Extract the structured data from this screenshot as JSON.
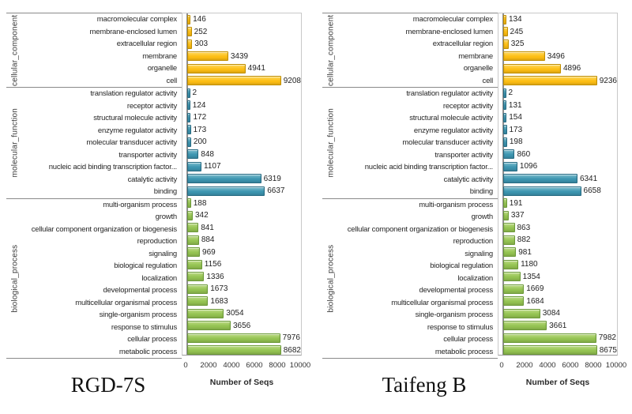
{
  "figure": {
    "axis_ticks": [
      "0",
      "2000",
      "4000",
      "6000",
      "8000",
      "10000"
    ],
    "xlabel": "Number of Seqs",
    "group_colors": {
      "cellular_component": {
        "fill": "#FDBE14",
        "fill_light": "#FFD95E",
        "stroke": "#C08E00"
      },
      "molecular_function": {
        "fill": "#3D95B0",
        "fill_light": "#7BBDCE",
        "stroke": "#276B83"
      },
      "biological_process": {
        "fill": "#94C352",
        "fill_light": "#BCDC85",
        "stroke": "#6C9A39"
      }
    }
  },
  "chart_data": [
    {
      "type": "bar",
      "orientation": "horizontal",
      "title": "RGD-7S",
      "xlabel": "Number of Seqs",
      "xlim": [
        0,
        10000
      ],
      "x_ticks": [
        0,
        2000,
        4000,
        6000,
        8000,
        10000
      ],
      "grid": false,
      "legend": "none",
      "groups": [
        {
          "name": "cellular_component",
          "categories": [
            "macromolecular complex",
            "membrane-enclosed lumen",
            "extracellular region",
            "membrane",
            "organelle",
            "cell"
          ],
          "values": [
            146,
            252,
            303,
            3439,
            4941,
            9208
          ]
        },
        {
          "name": "molecular_function",
          "categories": [
            "translation regulator activity",
            "receptor activity",
            "structural molecule activity",
            "enzyme regulator activity",
            "molecular transducer activity",
            "transporter activity",
            "nucleic acid binding transcription factor...",
            "catalytic activity",
            "binding"
          ],
          "values": [
            2,
            124,
            172,
            173,
            200,
            848,
            1107,
            6319,
            6637
          ]
        },
        {
          "name": "biological_process",
          "categories": [
            "multi-organism process",
            "growth",
            "cellular component organization or biogenesis",
            "reproduction",
            "signaling",
            "biological regulation",
            "localization",
            "developmental process",
            "multicellular organismal process",
            "single-organism process",
            "response to stimulus",
            "cellular process",
            "metabolic process"
          ],
          "values": [
            188,
            342,
            841,
            884,
            969,
            1156,
            1336,
            1673,
            1683,
            3054,
            3656,
            7976,
            8682
          ]
        }
      ]
    },
    {
      "type": "bar",
      "orientation": "horizontal",
      "title": "Taifeng B",
      "xlabel": "Number of Seqs",
      "xlim": [
        0,
        10000
      ],
      "x_ticks": [
        0,
        2000,
        4000,
        6000,
        8000,
        10000
      ],
      "grid": false,
      "legend": "none",
      "groups": [
        {
          "name": "cellular_component",
          "categories": [
            "macromolecular complex",
            "membrane-enclosed lumen",
            "extracellular region",
            "membrane",
            "organelle",
            "cell"
          ],
          "values": [
            134,
            245,
            325,
            3496,
            4896,
            9236
          ]
        },
        {
          "name": "molecular_function",
          "categories": [
            "translation regulator activity",
            "receptor activity",
            "structural molecule activity",
            "enzyme regulator activity",
            "molecular transducer activity",
            "transporter activity",
            "nucleic acid binding transcription factor...",
            "catalytic activity",
            "binding"
          ],
          "values": [
            2,
            131,
            154,
            173,
            198,
            860,
            1096,
            6341,
            6658
          ]
        },
        {
          "name": "biological_process",
          "categories": [
            "multi-organism process",
            "growth",
            "cellular component organization or biogenesis",
            "reproduction",
            "signaling",
            "biological regulation",
            "localization",
            "developmental process",
            "multicellular organismal process",
            "single-organism process",
            "response to stimulus",
            "cellular process",
            "metabolic process"
          ],
          "values": [
            191,
            337,
            863,
            882,
            981,
            1180,
            1354,
            1669,
            1684,
            3084,
            3661,
            7982,
            8675
          ]
        }
      ]
    }
  ]
}
